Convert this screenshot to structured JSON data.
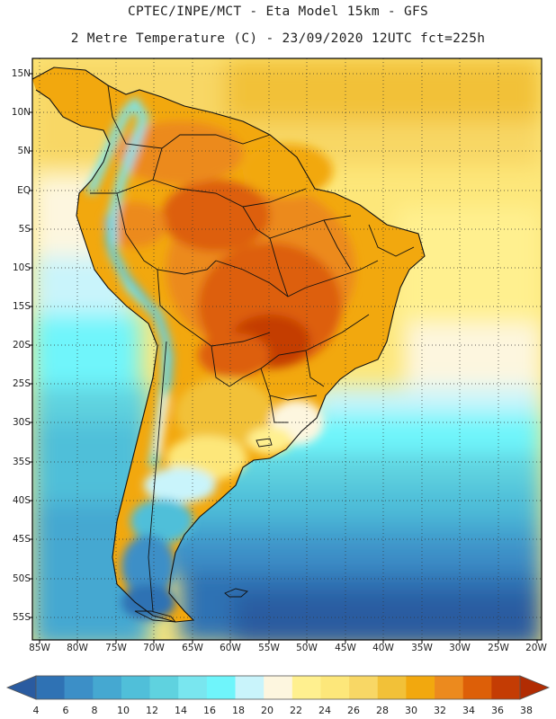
{
  "header": {
    "line1": "CPTEC/INPE/MCT -  Eta Model 15km - GFS",
    "line2": "2 Metre Temperature (C) - 23/09/2020 12UTC fct=225h"
  },
  "map": {
    "lat_labels": [
      "15N",
      "10N",
      "5N",
      "EQ",
      "5S",
      "10S",
      "15S",
      "20S",
      "25S",
      "30S",
      "35S",
      "40S",
      "45S",
      "50S",
      "55S"
    ],
    "lon_labels": [
      "85W",
      "80W",
      "75W",
      "70W",
      "65W",
      "60W",
      "55W",
      "50W",
      "45W",
      "40W",
      "35W",
      "30W",
      "25W",
      "20W"
    ],
    "features": [
      "South America coastline",
      "country borders",
      "state borders"
    ]
  },
  "colorbar": {
    "ticks": [
      "4",
      "6",
      "8",
      "10",
      "12",
      "14",
      "16",
      "18",
      "20",
      "22",
      "24",
      "26",
      "28",
      "30",
      "32",
      "34",
      "36",
      "38"
    ],
    "colors": [
      "#2a5ba0",
      "#2f72b4",
      "#3c8fc7",
      "#45a8d1",
      "#50bfd9",
      "#5fd2df",
      "#79e6ef",
      "#6ff5fb",
      "#c9f4fb",
      "#fdf6df",
      "#fff08f",
      "#fde77a",
      "#f8d765",
      "#f2c138",
      "#f2a80e",
      "#ec8a1e",
      "#dd5f08",
      "#c43c04",
      "#b12c03"
    ]
  }
}
